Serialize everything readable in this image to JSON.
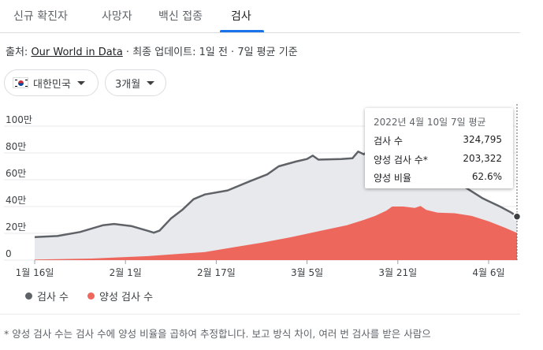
{
  "tabs": [
    {
      "label": "신규 확진자"
    },
    {
      "label": "사망자"
    },
    {
      "label": "백신 접종"
    },
    {
      "label": "검사"
    }
  ],
  "source": {
    "prefix": "출처: ",
    "link": "Our World in Data",
    "suffix": " · 최종 업데이트: 1일 전 · 7일 평균 기준"
  },
  "filters": {
    "country": "대한민국",
    "period": "3개월"
  },
  "tooltip": {
    "date": "2022년 4월 10일 7일 평균",
    "rows": [
      {
        "label": "검사 수",
        "value": "324,795"
      },
      {
        "label": "양성 검사 수*",
        "value": "203,322"
      },
      {
        "label": "양성 비율",
        "value": "62.6%"
      }
    ]
  },
  "legend": {
    "tests": "검사 수",
    "positive": "양성 검사 수"
  },
  "footnote": "* 양성 검사 수는 검사 수에 양성 비율을 곱하여 추정합니다. 보고 방식 차이, 여러 번 검사를 받은 사람으",
  "colors": {
    "tests_line": "#5f6368",
    "tests_area": "#e8e9ed",
    "positive_area": "#ee675c",
    "tab_accent": "#1a73e8"
  },
  "chart_data": {
    "type": "area",
    "yticks": [
      "0",
      "20만",
      "40만",
      "60만",
      "80만",
      "100만"
    ],
    "ylim": [
      0,
      1000000
    ],
    "xticks": [
      {
        "label": "1월 16일",
        "day": 0
      },
      {
        "label": "2월 1일",
        "day": 16
      },
      {
        "label": "2월 17일",
        "day": 32
      },
      {
        "label": "3월 5일",
        "day": 48
      },
      {
        "label": "3월 21일",
        "day": 64
      },
      {
        "label": "4월 6일",
        "day": 80
      }
    ],
    "series": [
      {
        "name": "검사 수",
        "points": [
          [
            0,
            172000
          ],
          [
            4,
            180000
          ],
          [
            8,
            210000
          ],
          [
            12,
            260000
          ],
          [
            14,
            270000
          ],
          [
            17,
            255000
          ],
          [
            20,
            218000
          ],
          [
            21,
            205000
          ],
          [
            22,
            220000
          ],
          [
            24,
            310000
          ],
          [
            26,
            375000
          ],
          [
            28,
            455000
          ],
          [
            30,
            490000
          ],
          [
            34,
            520000
          ],
          [
            38,
            590000
          ],
          [
            41,
            640000
          ],
          [
            43,
            700000
          ],
          [
            46,
            735000
          ],
          [
            48,
            755000
          ],
          [
            49,
            780000
          ],
          [
            50,
            750000
          ],
          [
            54,
            755000
          ],
          [
            56,
            760000
          ],
          [
            57,
            810000
          ],
          [
            58,
            790000
          ],
          [
            59,
            820000
          ],
          [
            62,
            865000
          ],
          [
            63,
            870000
          ],
          [
            65,
            860000
          ],
          [
            67,
            800000
          ],
          [
            70,
            720000
          ],
          [
            73,
            620000
          ],
          [
            76,
            540000
          ],
          [
            79,
            460000
          ],
          [
            82,
            400000
          ],
          [
            84,
            355000
          ],
          [
            85,
            325000
          ]
        ]
      },
      {
        "name": "양성 검사 수",
        "points": [
          [
            0,
            5000
          ],
          [
            10,
            12000
          ],
          [
            20,
            30000
          ],
          [
            25,
            45000
          ],
          [
            30,
            60000
          ],
          [
            35,
            95000
          ],
          [
            40,
            130000
          ],
          [
            45,
            170000
          ],
          [
            50,
            215000
          ],
          [
            55,
            260000
          ],
          [
            58,
            300000
          ],
          [
            60,
            330000
          ],
          [
            62,
            370000
          ],
          [
            63,
            400000
          ],
          [
            65,
            400000
          ],
          [
            67,
            390000
          ],
          [
            68,
            405000
          ],
          [
            69,
            375000
          ],
          [
            71,
            355000
          ],
          [
            74,
            350000
          ],
          [
            77,
            330000
          ],
          [
            80,
            290000
          ],
          [
            83,
            240000
          ],
          [
            85,
            203000
          ]
        ]
      }
    ],
    "highlight": {
      "day": 85
    }
  }
}
